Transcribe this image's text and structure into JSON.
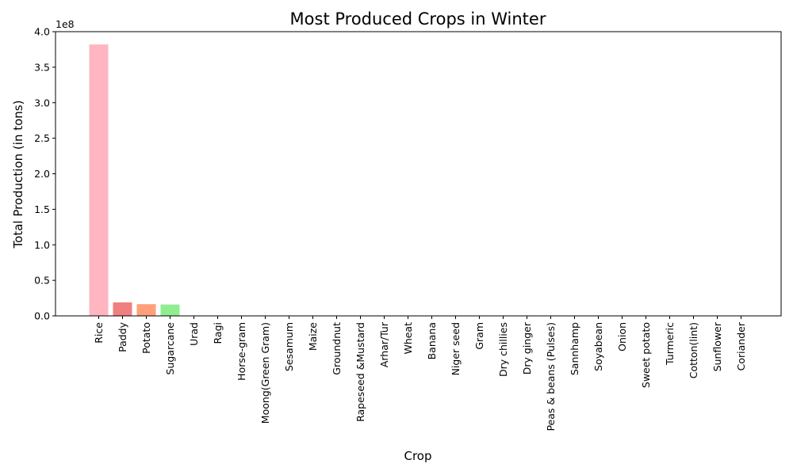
{
  "chart_data": {
    "type": "bar",
    "title": "Most Produced Crops in Winter",
    "xlabel": "Crop",
    "ylabel": "Total Production (in tons)",
    "y_multiplier_label": "1e8",
    "ylim": [
      0,
      4.0
    ],
    "yticks": [
      "0.0",
      "0.5",
      "1.0",
      "1.5",
      "2.0",
      "2.5",
      "3.0",
      "3.5",
      "4.0"
    ],
    "grid": false,
    "categories": [
      "Rice",
      "Paddy",
      "Potato",
      "Sugarcane",
      "Urad",
      "Ragi",
      "Horse-gram",
      "Moong(Green Gram)",
      "Sesamum",
      "Maize",
      "Groundnut",
      "Rapeseed &Mustard",
      "Arhar/Tur",
      "Wheat",
      "Banana",
      "Niger seed",
      "Gram",
      "Dry chillies",
      "Dry ginger",
      "Peas & beans (Pulses)",
      "Sannhamp",
      "Soyabean",
      "Onion",
      "Sweet potato",
      "Turmeric",
      "Cotton(lint)",
      "Sunflower",
      "Coriander"
    ],
    "values": [
      3.82,
      0.19,
      0.165,
      0.16,
      0.003,
      0.002,
      0.001,
      0.001,
      0.001,
      0.001,
      0.001,
      0.001,
      0.0005,
      0.0005,
      0.0005,
      0.0004,
      0.0003,
      0.0003,
      0.0002,
      0.0002,
      0.0002,
      0.0001,
      0.0001,
      0.0001,
      0.0001,
      0.0001,
      0.0001,
      0.0001
    ],
    "colors": [
      "#ffb6c1",
      "#f08080",
      "#ffa07a",
      "#90ee90",
      "#add8e6",
      "#d3d3d3",
      "#ffb6c1",
      "#f08080",
      "#ffa07a",
      "#90ee90",
      "#add8e6",
      "#d3d3d3",
      "#ffb6c1",
      "#f08080",
      "#ffa07a",
      "#90ee90",
      "#add8e6",
      "#d3d3d3",
      "#ffb6c1",
      "#f08080",
      "#ffa07a",
      "#90ee90",
      "#add8e6",
      "#d3d3d3",
      "#ffb6c1",
      "#f08080",
      "#ffa07a",
      "#90ee90"
    ]
  }
}
